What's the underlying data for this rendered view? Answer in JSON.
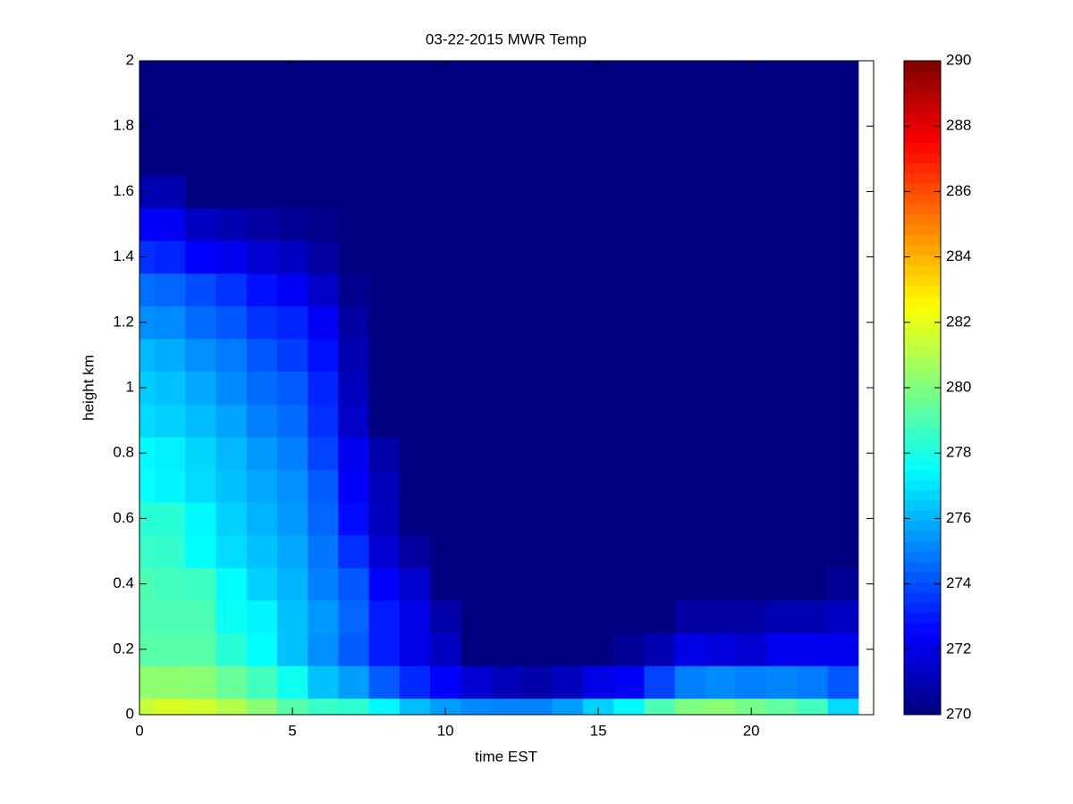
{
  "chart_data": {
    "type": "heatmap",
    "title": "03-22-2015 MWR Temp",
    "x_label": "time EST",
    "y_label": "height km",
    "xlim": [
      0,
      24
    ],
    "xticks": [
      0,
      5,
      10,
      15,
      20
    ],
    "ylim": [
      0,
      2
    ],
    "yticks": [
      0,
      0.2,
      0.4,
      0.6,
      0.8,
      1,
      1.2,
      1.4,
      1.6,
      1.8,
      2
    ],
    "clim": [
      270,
      290
    ],
    "cticks": [
      270,
      272,
      274,
      276,
      278,
      280,
      282,
      284,
      286,
      288,
      290
    ],
    "colormap": "jet",
    "x_edges": [
      0,
      0.5,
      1.5,
      2.5,
      3.5,
      4.5,
      5.5,
      6.5,
      7.5,
      8.5,
      9.5,
      10.5,
      11.5,
      12.5,
      13.5,
      14.5,
      15.5,
      16.5,
      17.5,
      18.5,
      19.5,
      20.5,
      21.5,
      22.5,
      23.5
    ],
    "y_edges": [
      0,
      0.05,
      0.15,
      0.25,
      0.35,
      0.45,
      0.55,
      0.65,
      0.75,
      0.85,
      0.95,
      1.05,
      1.15,
      1.25,
      1.35,
      1.45,
      1.55,
      1.65,
      2
    ],
    "z": [
      [
        281.4,
        281.8,
        281.6,
        281,
        280.2,
        279.2,
        278.6,
        278.4,
        277.4,
        276.2,
        275.6,
        275.2,
        275.1,
        275.1,
        275.6,
        276.6,
        277.4,
        279,
        280,
        280.2,
        279.8,
        279.4,
        278.8,
        276.8
      ],
      [
        280.3,
        280.3,
        280.2,
        279.5,
        278.8,
        277.8,
        276.3,
        275.6,
        274.3,
        273.3,
        272.5,
        271.6,
        271.1,
        270.8,
        271.2,
        272,
        272.3,
        273.8,
        275,
        275.2,
        275,
        275.1,
        274.9,
        274.2
      ],
      [
        279.2,
        279.2,
        279.2,
        278.3,
        277.5,
        276.3,
        275.3,
        274.3,
        273,
        272,
        271.3,
        270,
        270,
        270,
        270,
        270,
        270.5,
        271,
        272,
        271.8,
        271.6,
        272.2,
        272.2,
        272.2
      ],
      [
        279,
        279,
        279,
        277.7,
        277.3,
        276.3,
        275.5,
        274.5,
        273,
        272,
        270.8,
        270,
        270,
        270,
        270,
        270,
        270,
        270,
        270.7,
        270.7,
        270.7,
        271,
        271,
        271.3
      ],
      [
        279,
        278.8,
        278.7,
        277.5,
        276.6,
        276,
        275,
        274.2,
        272.5,
        271.5,
        270,
        270,
        270,
        270,
        270,
        270,
        270,
        270,
        270,
        270,
        270,
        270,
        270,
        270.5
      ],
      [
        278.6,
        278.5,
        277.5,
        276.8,
        276.3,
        275.8,
        274.8,
        273.4,
        271.6,
        270.6,
        270,
        270,
        270,
        270,
        270,
        270,
        270,
        270,
        270,
        270,
        270,
        270,
        270,
        270
      ],
      [
        278.3,
        278.3,
        277.4,
        276.6,
        276,
        275.5,
        274.5,
        272.7,
        271.2,
        270,
        270,
        270,
        270,
        270,
        270,
        270,
        270,
        270,
        270,
        270,
        270,
        270,
        270,
        270
      ],
      [
        277.6,
        277.3,
        276.8,
        276.3,
        275.8,
        275.3,
        274.3,
        272.4,
        271.1,
        270,
        270,
        270,
        270,
        270,
        270,
        270,
        270,
        270,
        270,
        270,
        270,
        270,
        270,
        270
      ],
      [
        277.4,
        277.2,
        276.7,
        276.1,
        275.5,
        275,
        273.8,
        272.2,
        270.8,
        270,
        270,
        270,
        270,
        270,
        270,
        270,
        270,
        270,
        270,
        270,
        270,
        270,
        270,
        270
      ],
      [
        276.8,
        276.6,
        276.2,
        275.7,
        275,
        274.6,
        273.4,
        271.4,
        270,
        270,
        270,
        270,
        270,
        270,
        270,
        270,
        270,
        270,
        270,
        270,
        270,
        270,
        270,
        270
      ],
      [
        276.5,
        276.3,
        275.8,
        275.2,
        274.6,
        274.3,
        273.2,
        271.2,
        270,
        270,
        270,
        270,
        270,
        270,
        270,
        270,
        270,
        270,
        270,
        270,
        270,
        270,
        270,
        270
      ],
      [
        276.1,
        275.9,
        275.3,
        274.9,
        274.2,
        273.7,
        272.8,
        271,
        270,
        270,
        270,
        270,
        270,
        270,
        270,
        270,
        270,
        270,
        270,
        270,
        270,
        270,
        270,
        270
      ],
      [
        275.3,
        275.2,
        274.6,
        274.2,
        273.5,
        273.2,
        272.3,
        270.7,
        270,
        270,
        270,
        270,
        270,
        270,
        270,
        270,
        270,
        270,
        270,
        270,
        270,
        270,
        270,
        270
      ],
      [
        274.7,
        274.5,
        274,
        273.5,
        272.8,
        272.3,
        271.4,
        270.3,
        270,
        270,
        270,
        270,
        270,
        270,
        270,
        270,
        270,
        270,
        270,
        270,
        270,
        270,
        270,
        270
      ],
      [
        273.4,
        273.2,
        272.5,
        272.2,
        271.6,
        271.3,
        270.7,
        270,
        270,
        270,
        270,
        270,
        270,
        270,
        270,
        270,
        270,
        270,
        270,
        270,
        270,
        270,
        270,
        270
      ],
      [
        272.4,
        272.3,
        271.3,
        271,
        270.7,
        270.4,
        270.2,
        270,
        270,
        270,
        270,
        270,
        270,
        270,
        270,
        270,
        270,
        270,
        270,
        270,
        270,
        270,
        270,
        270
      ],
      [
        271,
        271,
        270,
        270,
        270,
        270,
        270,
        270,
        270,
        270,
        270,
        270,
        270,
        270,
        270,
        270,
        270,
        270,
        270,
        270,
        270,
        270,
        270,
        270
      ],
      [
        270,
        270,
        270,
        270,
        270,
        270,
        270,
        270,
        270,
        270,
        270,
        270,
        270,
        270,
        270,
        270,
        270,
        270,
        270,
        270,
        270,
        270,
        270,
        270
      ]
    ]
  }
}
